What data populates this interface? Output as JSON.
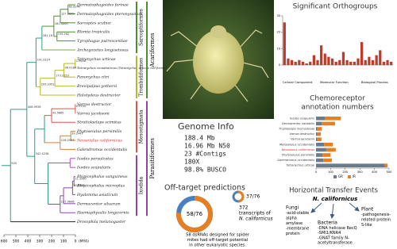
{
  "tree": {
    "species": [
      "Dermatophagoides farinae",
      "Dermatophagoides pteronyssinus",
      "Sarcoptes scabiei",
      "Blomia tropicalis",
      "Tyrophagus putrescentiae",
      "Archegozetes longisetosus",
      "Tetranychus urticae",
      "Tetranychus cinnabarinus (Tetranychus urticae red forms)",
      "Panonychus citri",
      "Brevipalpus yothersi",
      "Halotydeus destructor",
      "Varroa destructor",
      "Varroa jacobsoni",
      "Stratiolaelaps scimitus",
      "Phytoseiulus persimilis",
      "Neoseiulus californicus",
      "Galendromus occidentalis",
      "Ixodes persulcatus",
      "Ixodes scapularis",
      "Rhipicephalus sanguineus",
      "Rhipicephalus microplus",
      "Hyalomma asiaticum",
      "Dermacentor silvarum",
      "Haemaphysalis longicornis",
      "Drosophila melanogaster"
    ],
    "node_labels": [
      "62.6240",
      "127.2639",
      "155.262",
      "181.0000",
      "281.16",
      "331.0224",
      "1.9658",
      "96.0180",
      "173.2153",
      "295.9351",
      "408.9936",
      "0.5705",
      "43.5665",
      "39.2447",
      "128.2927",
      "342.4238",
      "12.3300",
      "23.8451",
      "127.9646",
      "545"
    ],
    "clades_inner": [
      "Sarcoptiformes",
      "Trombidiformes",
      "Mesostigmata",
      "Ixodida"
    ],
    "clades_outer": [
      "Acariformes",
      "Parasitiformes"
    ],
    "xlim": [
      600,
      0
    ],
    "xticks": [
      600,
      500,
      400,
      300,
      200,
      100,
      0
    ],
    "axis_unit": "(MYA)"
  },
  "orthogroups": {
    "title": "Significant Orthogroups",
    "group_labels": [
      "Cellular Component",
      "Molecular Function",
      "Biological Process"
    ],
    "group_sizes": [
      8,
      12,
      10
    ],
    "values": [
      26,
      4,
      3,
      2,
      3,
      2,
      1,
      2,
      6,
      3,
      12,
      7,
      5,
      4,
      2,
      3,
      8,
      3,
      2,
      2,
      4,
      14,
      3,
      5,
      3,
      6,
      9,
      2,
      3,
      2
    ],
    "ylim": [
      0,
      30
    ],
    "yticks": [
      0,
      10,
      20,
      30
    ],
    "color": "#c0392b"
  },
  "chemoreceptor": {
    "title": [
      "Chemoreceptor",
      "annotation numbers"
    ],
    "species": [
      "Ixodes scapularis",
      "Dermacentor variabilis",
      "Tropilaelaps mercedesae",
      "Varroa destructor",
      "Varroa jacobsoni",
      "Metaseiulus occidentalis",
      "Neoseiulus californicus",
      "Phytoseiulus persimilis",
      "Galendromus occidentalis",
      "Tetranychus urticae"
    ],
    "series": [
      {
        "name": "GR",
        "color": "#6c7a89",
        "values": [
          60,
          40,
          10,
          8,
          9,
          55,
          70,
          45,
          50,
          470
        ]
      },
      {
        "name": "IR",
        "color": "#e67e22",
        "values": [
          110,
          90,
          30,
          25,
          28,
          60,
          65,
          55,
          58,
          20
        ]
      }
    ],
    "xlim": [
      0,
      500
    ],
    "xticks": [
      0,
      100,
      200,
      300,
      400,
      500
    ]
  },
  "genome_info": {
    "title": "Genome Info",
    "lines": [
      "188.4 Mb",
      "16.96 Mb N50",
      "23   #Contigs",
      "180X",
      "98.8% BUSCO"
    ]
  },
  "off_target": {
    "title": "Off-target predictions",
    "donut_main": {
      "label": "58/76",
      "value": 58,
      "total": 76
    },
    "donut_small": {
      "label": "37/76",
      "value": 37,
      "total": 76
    },
    "transcripts": [
      "372",
      "transcripts of",
      "N. californicus"
    ],
    "note": [
      "58 dsRNAs designed for spider",
      "mites had off-target potential",
      "in other eukaryotic species."
    ]
  },
  "hte": {
    "title": "Horizontal Transfer Events",
    "center": "N. californicus",
    "plant": [
      "Plant",
      "-pathogenesis-",
      "related protein",
      "S-like"
    ],
    "fungi": [
      "Fungi",
      "-acid-stable",
      "alpha",
      "amylase",
      "-membrane",
      "protein"
    ],
    "bacteria": [
      "Bacteria",
      "-DNA helicase RecQ",
      "-SMI1/KNR4",
      "-GNAT family N-",
      "acetyltransferase"
    ]
  }
}
